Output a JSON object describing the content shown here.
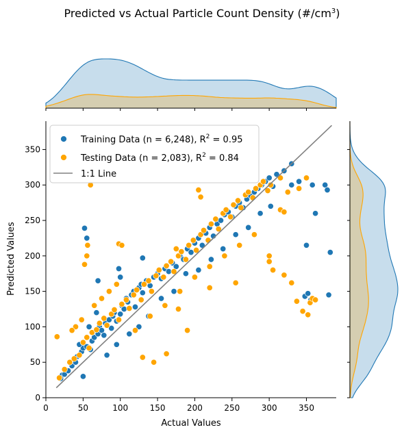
{
  "chart_data": {
    "type": "scatter",
    "title": "Predicted vs Actual Particle Count Density (#/cm",
    "title_superscript": "3",
    "title_suffix": ")",
    "xlabel": "Actual Values",
    "ylabel": "Predicted Values",
    "xlim": [
      0,
      390
    ],
    "ylim": [
      0,
      390
    ],
    "xticks": [
      0,
      50,
      100,
      150,
      200,
      250,
      300,
      350
    ],
    "yticks": [
      0,
      50,
      100,
      150,
      200,
      250,
      300,
      350
    ],
    "legend_placement": "top-left",
    "grid": false,
    "marginal_distributions": "kde (top: actual values, right: predicted values)",
    "series": [
      {
        "name": "Training Data (n = 6,248), R",
        "name_superscript": "2",
        "name_suffix": " = 0.95",
        "color": "#1f77b4",
        "points": [
          [
            20,
            27
          ],
          [
            22,
            32
          ],
          [
            25,
            33
          ],
          [
            30,
            38
          ],
          [
            35,
            45
          ],
          [
            40,
            50
          ],
          [
            42,
            58
          ],
          [
            48,
            65
          ],
          [
            50,
            70
          ],
          [
            55,
            72
          ],
          [
            60,
            68
          ],
          [
            62,
            80
          ],
          [
            65,
            85
          ],
          [
            70,
            90
          ],
          [
            72,
            100
          ],
          [
            75,
            95
          ],
          [
            78,
            88
          ],
          [
            80,
            105
          ],
          [
            85,
            110
          ],
          [
            88,
            98
          ],
          [
            90,
            115
          ],
          [
            92,
            120
          ],
          [
            95,
            108
          ],
          [
            100,
            118
          ],
          [
            102,
            130
          ],
          [
            105,
            125
          ],
          [
            108,
            140
          ],
          [
            110,
            135
          ],
          [
            115,
            145
          ],
          [
            118,
            150
          ],
          [
            120,
            128
          ],
          [
            125,
            155
          ],
          [
            128,
            160
          ],
          [
            130,
            148
          ],
          [
            135,
            165
          ],
          [
            140,
            158
          ],
          [
            145,
            170
          ],
          [
            150,
            175
          ],
          [
            155,
            168
          ],
          [
            160,
            182
          ],
          [
            165,
            178
          ],
          [
            170,
            190
          ],
          [
            175,
            185
          ],
          [
            180,
            200
          ],
          [
            185,
            195
          ],
          [
            190,
            210
          ],
          [
            195,
            205
          ],
          [
            200,
            218
          ],
          [
            205,
            225
          ],
          [
            210,
            215
          ],
          [
            215,
            232
          ],
          [
            220,
            240
          ],
          [
            225,
            228
          ],
          [
            230,
            245
          ],
          [
            235,
            250
          ],
          [
            240,
            258
          ],
          [
            245,
            262
          ],
          [
            250,
            255
          ],
          [
            255,
            270
          ],
          [
            260,
            275
          ],
          [
            265,
            268
          ],
          [
            270,
            280
          ],
          [
            275,
            285
          ],
          [
            280,
            290
          ],
          [
            285,
            295
          ],
          [
            290,
            300
          ],
          [
            295,
            305
          ],
          [
            300,
            310
          ],
          [
            305,
            298
          ],
          [
            310,
            315
          ],
          [
            320,
            320
          ],
          [
            330,
            330
          ],
          [
            52,
            239
          ],
          [
            55,
            225
          ],
          [
            50,
            30
          ],
          [
            70,
            165
          ],
          [
            98,
            182
          ],
          [
            100,
            170
          ],
          [
            130,
            197
          ],
          [
            348,
            143
          ],
          [
            352,
            147
          ],
          [
            356,
            138
          ],
          [
            350,
            215
          ],
          [
            362,
            260
          ],
          [
            375,
            300
          ],
          [
            380,
            145
          ],
          [
            382,
            205
          ],
          [
            378,
            293
          ],
          [
            358,
            300
          ],
          [
            330,
            300
          ],
          [
            340,
            305
          ],
          [
            45,
            75
          ],
          [
            58,
            100
          ],
          [
            68,
            120
          ],
          [
            82,
            60
          ],
          [
            95,
            75
          ],
          [
            112,
            90
          ],
          [
            125,
            100
          ],
          [
            138,
            115
          ],
          [
            155,
            140
          ],
          [
            172,
            150
          ],
          [
            188,
            175
          ],
          [
            205,
            180
          ],
          [
            222,
            195
          ],
          [
            238,
            210
          ],
          [
            255,
            230
          ],
          [
            272,
            240
          ],
          [
            288,
            260
          ],
          [
            302,
            270
          ]
        ]
      },
      {
        "name": "Testing Data (n = 2,083), R",
        "name_superscript": "2",
        "name_suffix": " = 0.84",
        "color": "#ffa500",
        "points": [
          [
            15,
            86
          ],
          [
            18,
            28
          ],
          [
            25,
            40
          ],
          [
            32,
            50
          ],
          [
            38,
            55
          ],
          [
            45,
            60
          ],
          [
            50,
            78
          ],
          [
            55,
            85
          ],
          [
            58,
            70
          ],
          [
            62,
            92
          ],
          [
            68,
            96
          ],
          [
            72,
            105
          ],
          [
            78,
            112
          ],
          [
            82,
            102
          ],
          [
            88,
            118
          ],
          [
            92,
            124
          ],
          [
            98,
            110
          ],
          [
            102,
            132
          ],
          [
            108,
            138
          ],
          [
            112,
            126
          ],
          [
            118,
            145
          ],
          [
            122,
            152
          ],
          [
            128,
            138
          ],
          [
            132,
            160
          ],
          [
            138,
            165
          ],
          [
            142,
            150
          ],
          [
            148,
            172
          ],
          [
            152,
            180
          ],
          [
            158,
            170
          ],
          [
            162,
            186
          ],
          [
            168,
            192
          ],
          [
            172,
            178
          ],
          [
            178,
            200
          ],
          [
            182,
            206
          ],
          [
            188,
            195
          ],
          [
            192,
            215
          ],
          [
            198,
            222
          ],
          [
            202,
            208
          ],
          [
            208,
            230
          ],
          [
            212,
            236
          ],
          [
            218,
            222
          ],
          [
            222,
            245
          ],
          [
            228,
            252
          ],
          [
            232,
            238
          ],
          [
            238,
            260
          ],
          [
            242,
            265
          ],
          [
            248,
            255
          ],
          [
            252,
            272
          ],
          [
            258,
            278
          ],
          [
            262,
            268
          ],
          [
            268,
            286
          ],
          [
            272,
            290
          ],
          [
            278,
            282
          ],
          [
            282,
            295
          ],
          [
            288,
            300
          ],
          [
            292,
            305
          ],
          [
            298,
            292
          ],
          [
            302,
            300
          ],
          [
            315,
            310
          ],
          [
            325,
            290
          ],
          [
            340,
            295
          ],
          [
            350,
            310
          ],
          [
            52,
            188
          ],
          [
            55,
            200
          ],
          [
            56,
            215
          ],
          [
            98,
            217
          ],
          [
            102,
            215
          ],
          [
            60,
            300
          ],
          [
            205,
            293
          ],
          [
            208,
            283
          ],
          [
            220,
            155
          ],
          [
            130,
            57
          ],
          [
            145,
            50
          ],
          [
            162,
            62
          ],
          [
            178,
            125
          ],
          [
            175,
            210
          ],
          [
            190,
            95
          ],
          [
            255,
            162
          ],
          [
            315,
            265
          ],
          [
            320,
            262
          ],
          [
            300,
            200
          ],
          [
            300,
            192
          ],
          [
            305,
            180
          ],
          [
            320,
            173
          ],
          [
            337,
            136
          ],
          [
            345,
            122
          ],
          [
            352,
            117
          ],
          [
            355,
            134
          ],
          [
            358,
            140
          ],
          [
            362,
            138
          ],
          [
            330,
            162
          ],
          [
            48,
            110
          ],
          [
            40,
            100
          ],
          [
            35,
            95
          ],
          [
            65,
            130
          ],
          [
            75,
            140
          ],
          [
            85,
            150
          ],
          [
            95,
            160
          ],
          [
            120,
            95
          ],
          [
            140,
            115
          ],
          [
            160,
            130
          ],
          [
            180,
            150
          ],
          [
            200,
            170
          ],
          [
            220,
            185
          ],
          [
            240,
            200
          ],
          [
            260,
            215
          ],
          [
            280,
            230
          ]
        ]
      },
      {
        "name": "1:1 Line",
        "color": "#808080",
        "type": "line",
        "x": [
          14,
          384
        ],
        "y": [
          14,
          384
        ]
      }
    ]
  }
}
